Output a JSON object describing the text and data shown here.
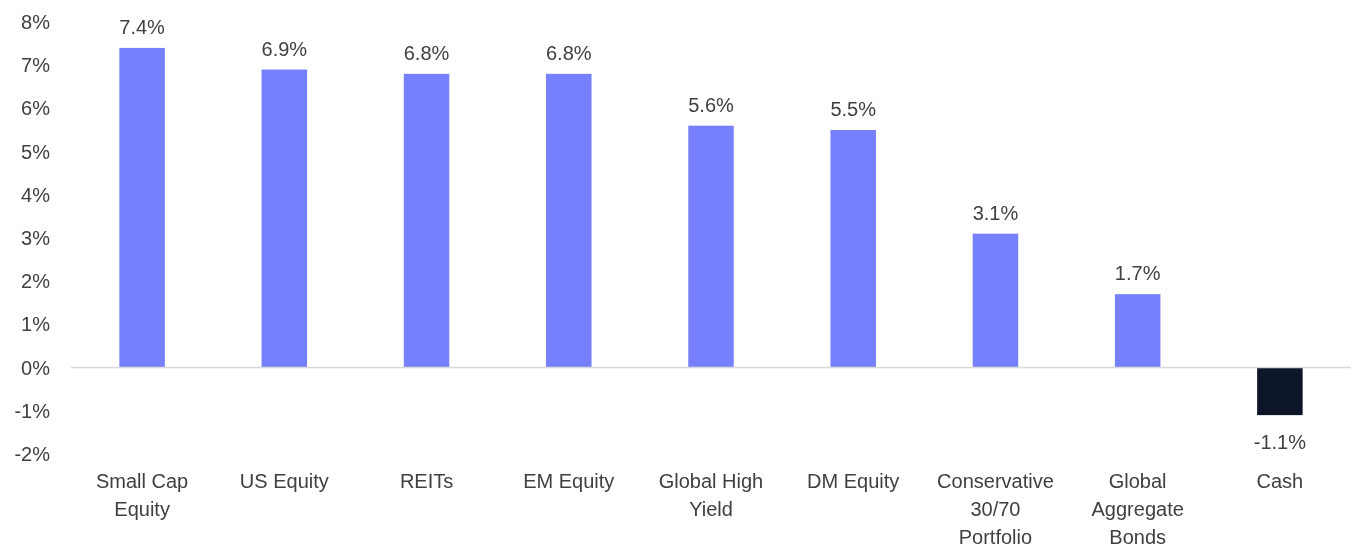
{
  "chart_data": {
    "type": "bar",
    "categories": [
      "Small Cap Equity",
      "US Equity",
      "REITs",
      "EM Equity",
      "Global High Yield",
      "DM Equity",
      "Conservative 30/70 Portfolio",
      "Global Aggregate Bonds",
      "Cash"
    ],
    "values": [
      7.4,
      6.9,
      6.8,
      6.8,
      5.6,
      5.5,
      3.1,
      1.7,
      -1.1
    ],
    "colors": [
      "#7780fc",
      "#7780fc",
      "#7780fc",
      "#7780fc",
      "#7780fc",
      "#7780fc",
      "#7780fc",
      "#7780fc",
      "#0d1628"
    ],
    "value_labels": [
      "7.4%",
      "6.9%",
      "6.8%",
      "6.8%",
      "5.6%",
      "5.5%",
      "3.1%",
      "1.7%",
      "-1.1%"
    ],
    "ylim": [
      -2,
      8
    ],
    "yticks": [
      {
        "value": -2,
        "label": "-2%"
      },
      {
        "value": -1,
        "label": "-1%"
      },
      {
        "value": 0,
        "label": "0%"
      },
      {
        "value": 1,
        "label": "1%"
      },
      {
        "value": 2,
        "label": "2%"
      },
      {
        "value": 3,
        "label": "3%"
      },
      {
        "value": 4,
        "label": "4%"
      },
      {
        "value": 5,
        "label": "5%"
      },
      {
        "value": 6,
        "label": "6%"
      },
      {
        "value": 7,
        "label": "7%"
      },
      {
        "value": 8,
        "label": "8%"
      }
    ]
  }
}
